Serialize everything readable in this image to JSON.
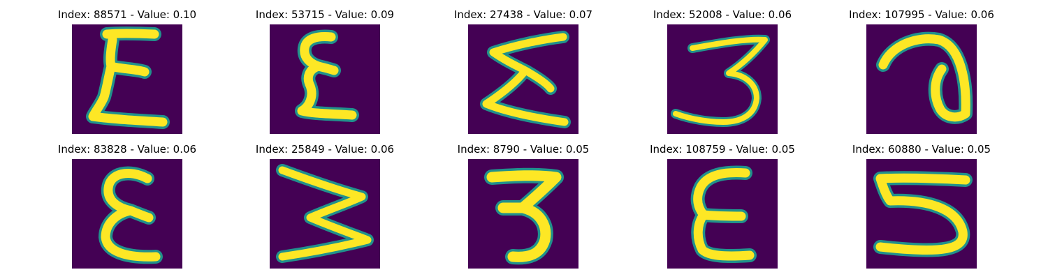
{
  "colors": {
    "background": "#440154",
    "stroke_edge": "#21918c",
    "stroke_mid": "#5ec962",
    "stroke_core": "#fde725"
  },
  "items": [
    {
      "title": "Index: 88571 - Value: 0.10",
      "glyph": "epsilon-like"
    },
    {
      "title": "Index: 53715 - Value: 0.09",
      "glyph": "epsilon-like"
    },
    {
      "title": "Index: 27438 - Value: 0.07",
      "glyph": "sigma-like"
    },
    {
      "title": "Index: 52008 - Value: 0.06",
      "glyph": "three-like"
    },
    {
      "title": "Index: 107995 - Value: 0.06",
      "glyph": "a-like"
    },
    {
      "title": "Index: 83828 - Value: 0.06",
      "glyph": "epsilon-like"
    },
    {
      "title": "Index: 25849 - Value: 0.06",
      "glyph": "w-sideways-like"
    },
    {
      "title": "Index: 8790 - Value: 0.05",
      "glyph": "three-like"
    },
    {
      "title": "Index: 108759 - Value: 0.05",
      "glyph": "e-like"
    },
    {
      "title": "Index: 60880 - Value: 0.05",
      "glyph": "five-like"
    }
  ]
}
